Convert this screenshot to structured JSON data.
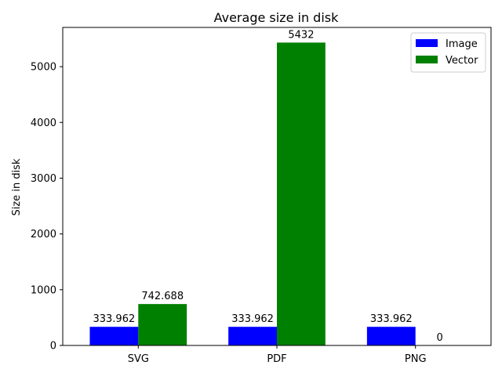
{
  "chart_data": {
    "type": "bar",
    "title": "Average size in disk",
    "xlabel": "",
    "ylabel": "Size in disk",
    "categories": [
      "SVG",
      "PDF",
      "PNG"
    ],
    "ylim": [
      0,
      5704
    ],
    "yticks": [
      0,
      1000,
      2000,
      3000,
      4000,
      5000
    ],
    "grid": false,
    "legend_position": "top-right",
    "series": [
      {
        "name": "Image",
        "color": "#0000ff",
        "values": [
          333.962,
          333.962,
          333.962
        ],
        "labels": [
          "333.962",
          "333.962",
          "333.962"
        ]
      },
      {
        "name": "Vector",
        "color": "#008000",
        "values": [
          742.688,
          5432,
          0
        ],
        "labels": [
          "742.688",
          "5432",
          "0"
        ]
      }
    ]
  }
}
